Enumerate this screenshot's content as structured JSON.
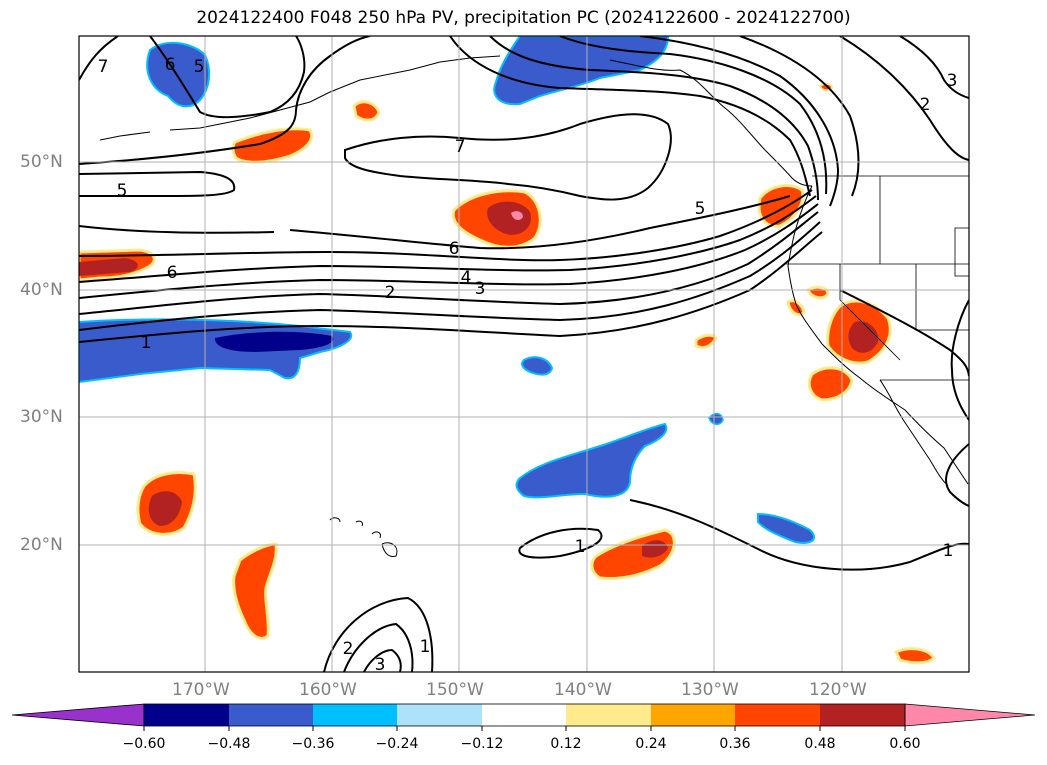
{
  "title": "2024122400 F048 250 hPa PV, precipitation PC (2024122600 - 2024122700)",
  "map": {
    "lon_range": [
      -180,
      -110
    ],
    "lat_range": [
      10,
      60
    ],
    "lat_labels": [
      "50°N",
      "40°N",
      "30°N",
      "20°N"
    ],
    "lon_labels": [
      "170°W",
      "160°W",
      "150°W",
      "140°W",
      "130°W",
      "120°W"
    ],
    "grid": true,
    "pv_contour_labels": [
      "7",
      "6",
      "5",
      "5",
      "7",
      "5",
      "6",
      "4",
      "3",
      "2",
      "6",
      "1",
      "1",
      "2",
      "3",
      "1",
      "2",
      "3",
      "1"
    ]
  },
  "colorbar": {
    "ticks": [
      "−0.60",
      "−0.48",
      "−0.36",
      "−0.24",
      "−0.12",
      "0.12",
      "0.24",
      "0.36",
      "0.48",
      "0.60"
    ],
    "colors": [
      "#9932CC",
      "#00008B",
      "#3A5BCC",
      "#00BFFF",
      "#ADE2FA",
      "#FFFFFF",
      "#FFEA8C",
      "#FFA500",
      "#FF4500",
      "#B22222",
      "#FF88AA"
    ]
  }
}
